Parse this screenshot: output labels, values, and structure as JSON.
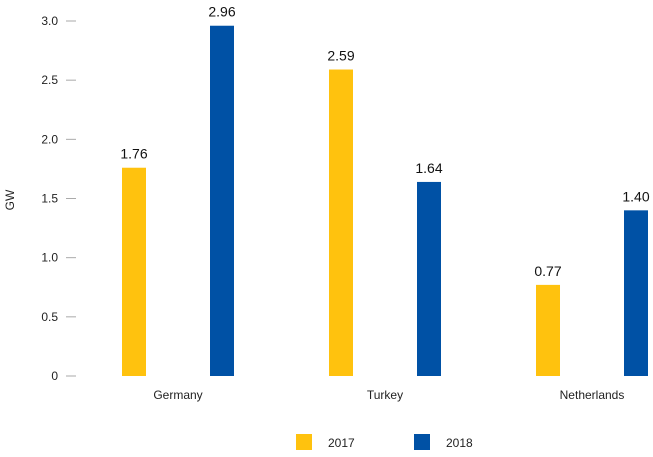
{
  "chart_data": {
    "type": "bar",
    "title": "",
    "xlabel": "",
    "ylabel": "GW",
    "ylim": [
      0,
      3.0
    ],
    "yticks": [
      0,
      0.5,
      1.0,
      1.5,
      2.0,
      2.5,
      3.0
    ],
    "ytick_labels": [
      "0",
      "0.5",
      "1.0",
      "1.5",
      "2.0",
      "2.5",
      "3.0"
    ],
    "categories": [
      "Germany",
      "Turkey",
      "Netherlands"
    ],
    "series": [
      {
        "name": "2017",
        "color": "#FFC20E",
        "values": [
          1.76,
          2.59,
          0.77
        ],
        "labels": [
          "1.76",
          "2.59",
          "0.77"
        ]
      },
      {
        "name": "2018",
        "color": "#0051A5",
        "values": [
          2.96,
          1.64,
          1.4
        ],
        "labels": [
          "2.96",
          "1.64",
          "1.40"
        ]
      }
    ],
    "legend_position": "bottom-center",
    "grid": false
  }
}
